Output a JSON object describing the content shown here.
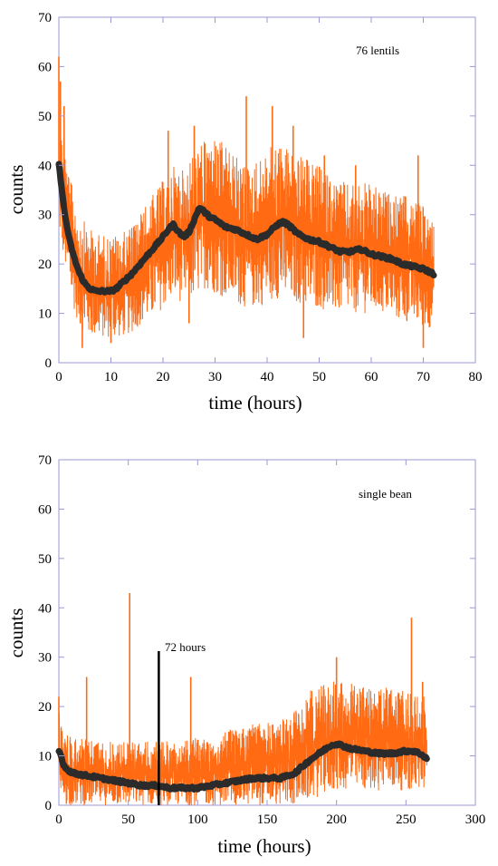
{
  "colors": {
    "raw": "#ff6a13",
    "smooth": "#2b2b2b",
    "frame": "#9b97d6",
    "marker": "#000000"
  },
  "chart_data": [
    {
      "type": "line",
      "title": "",
      "annotation": "76 lentils",
      "xlabel": "time (hours)",
      "ylabel": "counts",
      "xlim": [
        0,
        80
      ],
      "ylim": [
        0,
        70
      ],
      "xticks": [
        0,
        10,
        20,
        30,
        40,
        50,
        60,
        70,
        80
      ],
      "yticks": [
        0,
        10,
        20,
        30,
        40,
        50,
        60,
        70
      ],
      "grid": false,
      "series": [
        {
          "role": "raw counts (noise band)",
          "color": "#ff6a13",
          "x": [
            0,
            1,
            2,
            4,
            6,
            8,
            10,
            12,
            14,
            16,
            18,
            20,
            22,
            24,
            26,
            28,
            30,
            32,
            34,
            36,
            38,
            40,
            42,
            44,
            46,
            48,
            50,
            52,
            54,
            56,
            58,
            60,
            62,
            64,
            66,
            68,
            70,
            72
          ],
          "low": [
            27,
            20,
            14,
            7,
            5,
            5,
            5,
            5,
            6,
            8,
            9,
            11,
            13,
            12,
            13,
            15,
            14,
            13,
            12,
            11,
            11,
            12,
            13,
            12,
            12,
            11,
            11,
            10,
            10,
            10,
            10,
            10,
            10,
            9,
            8,
            8,
            7,
            7
          ],
          "high": [
            50,
            45,
            38,
            30,
            27,
            26,
            26,
            26,
            28,
            31,
            34,
            37,
            40,
            39,
            43,
            45,
            46,
            44,
            42,
            40,
            41,
            43,
            45,
            44,
            42,
            41,
            40,
            38,
            37,
            36,
            37,
            36,
            35,
            34,
            34,
            33,
            32,
            31
          ],
          "spikes": [
            [
              0,
              62
            ],
            [
              0.3,
              57
            ],
            [
              1,
              52
            ],
            [
              21,
              47
            ],
            [
              26,
              48
            ],
            [
              36,
              54
            ],
            [
              41,
              52
            ],
            [
              45,
              48
            ],
            [
              51,
              42
            ],
            [
              57,
              40
            ],
            [
              69,
              42
            ],
            [
              4.5,
              3
            ],
            [
              10,
              4
            ],
            [
              25,
              8
            ],
            [
              47,
              5
            ],
            [
              70,
              3
            ]
          ]
        },
        {
          "role": "smoothed counts",
          "color": "#2b2b2b",
          "x": [
            0,
            0.5,
            1,
            2,
            3,
            4,
            5,
            6,
            7,
            8,
            9,
            10,
            11,
            12,
            14,
            16,
            18,
            20,
            21,
            22,
            23,
            24,
            25,
            26,
            27,
            28,
            29,
            30,
            32,
            34,
            36,
            38,
            40,
            42,
            43,
            44,
            46,
            48,
            50,
            52,
            54,
            56,
            58,
            60,
            62,
            64,
            66,
            68,
            70,
            72
          ],
          "y": [
            40,
            36,
            31,
            25,
            21,
            18,
            16,
            15,
            14.5,
            14.5,
            14.5,
            14.5,
            15,
            16,
            18,
            20.5,
            23,
            25.5,
            27,
            28,
            26.5,
            25.5,
            26.5,
            29,
            31.5,
            30.5,
            29.5,
            29,
            27.5,
            27,
            26,
            25,
            26,
            28,
            28.5,
            28,
            26,
            25,
            24.5,
            23.5,
            22.5,
            22.5,
            23,
            22,
            21.5,
            21,
            20,
            19.5,
            19,
            18
          ]
        }
      ]
    },
    {
      "type": "line",
      "title": "",
      "annotation": "single bean",
      "marker_label": "72 hours",
      "marker_x": 72,
      "xlabel": "time (hours)",
      "ylabel": "counts",
      "xlim": [
        0,
        300
      ],
      "ylim": [
        0,
        70
      ],
      "xticks": [
        0,
        50,
        100,
        150,
        200,
        250,
        300
      ],
      "yticks": [
        0,
        10,
        20,
        30,
        40,
        50,
        60,
        70
      ],
      "grid": false,
      "series": [
        {
          "role": "raw counts (noise band)",
          "color": "#ff6a13",
          "x": [
            0,
            2,
            5,
            10,
            20,
            30,
            40,
            50,
            60,
            70,
            80,
            90,
            100,
            110,
            120,
            130,
            140,
            150,
            160,
            170,
            180,
            190,
            200,
            210,
            220,
            230,
            240,
            250,
            260,
            265
          ],
          "low": [
            2,
            0,
            0,
            0,
            0,
            0,
            0,
            0,
            0,
            0,
            0,
            0,
            0,
            0,
            0,
            0,
            0,
            0,
            0,
            0,
            1,
            2,
            3,
            3,
            3,
            3,
            3,
            3,
            3,
            3
          ],
          "high": [
            19,
            17,
            15,
            14,
            14,
            13,
            13,
            13,
            13,
            13,
            13,
            13,
            14,
            14,
            15,
            16,
            17,
            17,
            17,
            20,
            23,
            25,
            26,
            25,
            24,
            24,
            24,
            23,
            22,
            22
          ],
          "spikes": [
            [
              0,
              22
            ],
            [
              20,
              26
            ],
            [
              51,
              43
            ],
            [
              95,
              26
            ],
            [
              200,
              30
            ],
            [
              254,
              38
            ],
            [
              262,
              25
            ]
          ]
        },
        {
          "role": "smoothed counts",
          "color": "#2b2b2b",
          "x": [
            0,
            1,
            3,
            5,
            10,
            20,
            30,
            40,
            50,
            60,
            70,
            80,
            90,
            100,
            110,
            120,
            130,
            140,
            150,
            160,
            170,
            180,
            190,
            195,
            200,
            205,
            210,
            220,
            230,
            240,
            250,
            255,
            260,
            265
          ],
          "y": [
            11,
            10.5,
            8.5,
            7.5,
            6.5,
            6,
            5.5,
            5,
            4.5,
            4,
            4,
            3.5,
            3.5,
            3.5,
            4,
            4.5,
            5,
            5.5,
            5.5,
            5.5,
            6.5,
            9,
            11,
            12,
            12.5,
            12,
            11.5,
            11,
            10.5,
            10.5,
            11,
            11,
            10.5,
            9.5
          ]
        }
      ]
    }
  ]
}
